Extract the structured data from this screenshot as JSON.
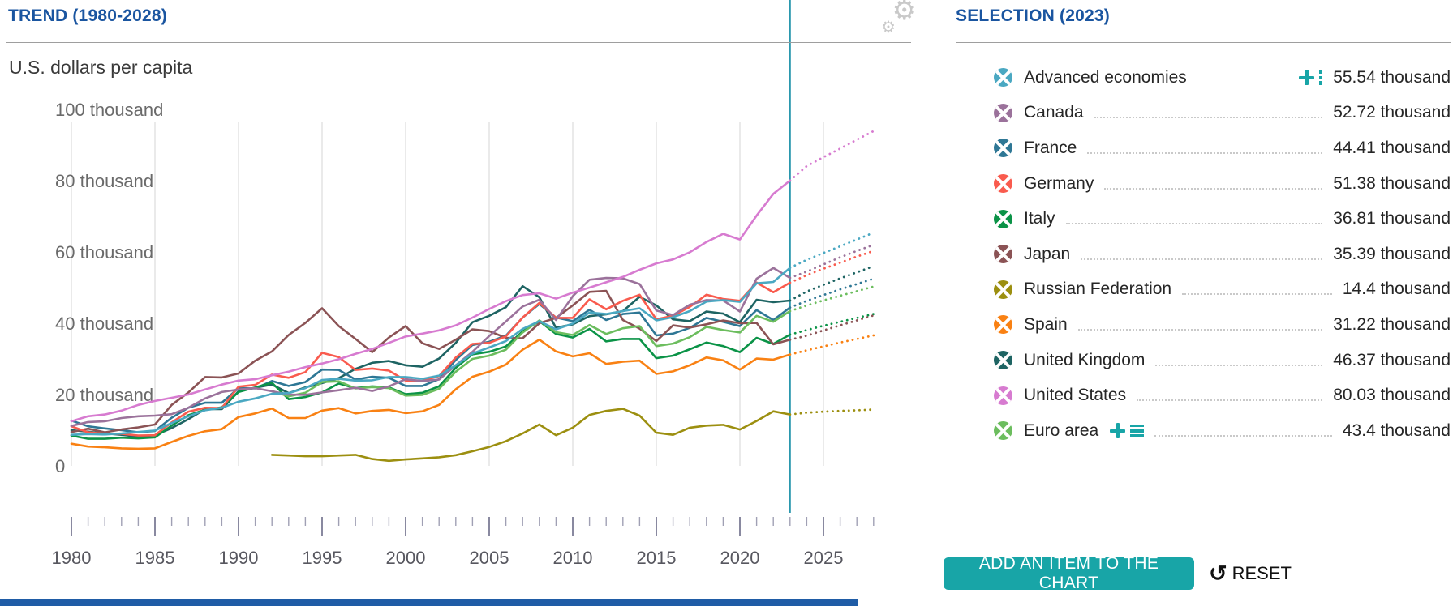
{
  "trend": {
    "title": "TREND (1980-2028)"
  },
  "selection": {
    "title": "SELECTION (2023)",
    "items": [
      {
        "label": "Advanced economies",
        "value": "55.54 thousand",
        "color": "#4aa8c2",
        "adder": "dots",
        "leader": false
      },
      {
        "label": "Canada",
        "value": "52.72 thousand",
        "color": "#9b729b",
        "adder": null,
        "leader": true
      },
      {
        "label": "France",
        "value": "44.41 thousand",
        "color": "#2e7795",
        "adder": null,
        "leader": true
      },
      {
        "label": "Germany",
        "value": "51.38 thousand",
        "color": "#f95b4e",
        "adder": null,
        "leader": true
      },
      {
        "label": "Italy",
        "value": "36.81 thousand",
        "color": "#0b9347",
        "adder": null,
        "leader": true
      },
      {
        "label": "Japan",
        "value": "35.39 thousand",
        "color": "#8b5355",
        "adder": null,
        "leader": true
      },
      {
        "label": "Russian Federation",
        "value": "14.4 thousand",
        "color": "#9c8f10",
        "adder": null,
        "leader": true
      },
      {
        "label": "Spain",
        "value": "31.22 thousand",
        "color": "#f98113",
        "adder": null,
        "leader": true
      },
      {
        "label": "United Kingdom",
        "value": "46.37 thousand",
        "color": "#1e6463",
        "adder": null,
        "leader": true
      },
      {
        "label": "United States",
        "value": "80.03 thousand",
        "color": "#d77bd0",
        "adder": null,
        "leader": true
      },
      {
        "label": "Euro area",
        "value": "43.4 thousand",
        "color": "#6cbd5e",
        "adder": "bars",
        "leader": true
      }
    ],
    "add_button": "ADD AN ITEM TO THE CHART",
    "reset_label": "RESET"
  },
  "chart_data": {
    "type": "line",
    "title": "TREND (1980-2028)",
    "unit_label": "U.S. dollars per capita",
    "value_unit": "thousand U.S. dollars",
    "x_range": [
      1980,
      2028
    ],
    "x_major_ticks": [
      1980,
      1985,
      1990,
      1995,
      2000,
      2005,
      2010,
      2015,
      2020,
      2025
    ],
    "y_ticks": [
      {
        "value": 100,
        "label": "100 thousand"
      },
      {
        "value": 80,
        "label": "80 thousand"
      },
      {
        "value": 60,
        "label": "60 thousand"
      },
      {
        "value": 40,
        "label": "40 thousand"
      },
      {
        "value": 20,
        "label": "20 thousand"
      },
      {
        "value": 0,
        "label": "0"
      }
    ],
    "ylim": [
      0,
      100
    ],
    "grid": "vertical-only",
    "legend_position": "right",
    "now_line_year": 2023,
    "projection_from": 2023,
    "now_line_color": "#2a98ae",
    "series": [
      {
        "name": "United Kingdom",
        "color": "#1e6463",
        "start_year": 1980,
        "values": [
          10.0,
          9.6,
          9.1,
          8.7,
          8.2,
          8.6,
          10.6,
          13.1,
          15.9,
          15.9,
          20.9,
          21.9,
          22.8,
          20.4,
          22.0,
          23.2,
          24.6,
          27.2,
          28.9,
          29.4,
          28.2,
          27.8,
          30.1,
          34.5,
          40.3,
          42.1,
          44.5,
          50.4,
          47.3,
          38.7,
          39.7,
          42.0,
          42.5,
          43.4,
          47.4,
          45.0,
          41.1,
          40.6,
          43.3,
          42.7,
          40.3,
          46.6,
          45.9,
          46.37,
          48.9,
          50.8,
          52.6,
          54.3,
          56.0
        ]
      },
      {
        "name": "France",
        "color": "#2e7795",
        "start_year": 1980,
        "values": [
          12.7,
          11.1,
          10.5,
          10.0,
          9.4,
          9.8,
          13.5,
          16.3,
          17.7,
          17.7,
          21.8,
          21.7,
          23.8,
          22.4,
          23.5,
          27.0,
          26.9,
          24.2,
          25.0,
          24.7,
          22.4,
          22.4,
          24.3,
          29.7,
          33.9,
          34.8,
          36.5,
          41.6,
          45.4,
          41.6,
          40.6,
          43.8,
          40.9,
          42.6,
          43.0,
          36.6,
          37.1,
          38.7,
          41.5,
          40.4,
          39.2,
          43.7,
          40.9,
          44.41,
          46.3,
          47.9,
          49.5,
          51.0,
          52.5
        ]
      },
      {
        "name": "Italy",
        "color": "#0b9347",
        "start_year": 1980,
        "values": [
          8.5,
          7.6,
          7.6,
          7.9,
          7.7,
          8.0,
          11.3,
          14.2,
          15.7,
          16.4,
          20.7,
          22.0,
          23.3,
          18.7,
          19.3,
          20.6,
          23.1,
          21.8,
          22.3,
          22.0,
          20.1,
          20.5,
          22.3,
          27.5,
          31.3,
          32.0,
          33.5,
          37.7,
          40.6,
          37.0,
          36.0,
          38.4,
          34.9,
          35.6,
          35.6,
          30.2,
          30.9,
          32.7,
          34.6,
          33.6,
          31.9,
          35.9,
          34.2,
          36.81,
          38.1,
          39.3,
          40.4,
          41.5,
          42.6
        ]
      },
      {
        "name": "Spain",
        "color": "#f98113",
        "start_year": 1980,
        "values": [
          6.2,
          5.4,
          5.2,
          4.9,
          4.8,
          4.9,
          6.7,
          8.4,
          9.7,
          10.3,
          13.7,
          14.7,
          16.1,
          13.4,
          13.4,
          15.5,
          16.2,
          14.7,
          15.4,
          15.7,
          14.8,
          15.3,
          17.1,
          21.5,
          25.0,
          26.4,
          28.4,
          32.6,
          35.4,
          32.1,
          30.7,
          31.6,
          28.6,
          29.2,
          29.5,
          25.8,
          26.5,
          28.2,
          30.4,
          29.6,
          27.0,
          30.1,
          29.8,
          31.22,
          32.4,
          33.5,
          34.6,
          35.6,
          36.6
        ]
      },
      {
        "name": "Japan",
        "color": "#8b5355",
        "start_year": 1980,
        "values": [
          9.5,
          10.4,
          9.4,
          10.2,
          10.8,
          11.6,
          17.1,
          20.6,
          24.9,
          24.8,
          25.9,
          29.5,
          32.1,
          36.7,
          40.1,
          44.2,
          39.2,
          35.6,
          31.9,
          36.0,
          39.2,
          34.4,
          32.8,
          35.4,
          38.3,
          37.8,
          35.9,
          35.8,
          40.0,
          41.5,
          45.0,
          48.8,
          49.1,
          40.9,
          38.5,
          35.0,
          39.4,
          38.8,
          39.7,
          40.8,
          40.0,
          40.1,
          34.1,
          35.39,
          36.5,
          38.0,
          39.4,
          40.8,
          42.2
        ]
      },
      {
        "name": "Russian Federation",
        "color": "#9c8f10",
        "start_year": 1992,
        "values": [
          3.1,
          2.9,
          2.7,
          2.7,
          2.9,
          3.1,
          1.9,
          1.4,
          1.8,
          2.1,
          2.4,
          3.0,
          4.1,
          5.3,
          6.9,
          9.1,
          11.6,
          8.6,
          10.7,
          14.3,
          15.4,
          16.0,
          14.1,
          9.3,
          8.7,
          10.7,
          11.3,
          11.5,
          10.2,
          12.6,
          15.3,
          14.4,
          14.9,
          15.2,
          15.4,
          15.6,
          15.8
        ]
      },
      {
        "name": "Euro area",
        "color": "#6cbd5e",
        "start_year": 1992,
        "values": [
          21.0,
          19.5,
          20.5,
          23.5,
          23.7,
          21.7,
          22.1,
          21.8,
          19.7,
          19.9,
          21.6,
          26.4,
          30.0,
          30.9,
          32.6,
          37.4,
          40.8,
          37.5,
          36.7,
          39.5,
          37.0,
          38.6,
          39.2,
          33.6,
          34.3,
          36.1,
          39.0,
          38.1,
          37.4,
          42.1,
          40.4,
          43.4,
          45.0,
          46.4,
          47.7,
          49.0,
          50.3
        ]
      },
      {
        "name": "Germany",
        "color": "#f95b4e",
        "start_year": 1980,
        "values": [
          11.1,
          9.4,
          9.0,
          9.0,
          8.5,
          8.6,
          12.2,
          15.2,
          16.3,
          16.2,
          22.2,
          22.7,
          25.6,
          24.7,
          26.3,
          31.7,
          30.5,
          26.9,
          27.3,
          26.7,
          23.9,
          23.8,
          25.2,
          30.4,
          34.2,
          34.5,
          36.3,
          41.6,
          45.7,
          41.5,
          41.5,
          46.7,
          43.9,
          46.3,
          48.0,
          41.1,
          42.1,
          44.6,
          48.0,
          46.8,
          46.3,
          51.4,
          48.7,
          51.38,
          53.5,
          55.3,
          57.0,
          58.7,
          60.3
        ]
      },
      {
        "name": "Canada",
        "color": "#9b729b",
        "start_year": 1980,
        "values": [
          11.2,
          12.3,
          12.5,
          13.4,
          13.9,
          14.1,
          14.5,
          16.3,
          18.9,
          20.7,
          21.4,
          21.8,
          20.9,
          20.0,
          19.9,
          20.6,
          21.2,
          21.9,
          21.0,
          22.3,
          24.3,
          23.8,
          24.2,
          28.2,
          32.0,
          36.4,
          40.5,
          44.7,
          46.6,
          40.9,
          47.6,
          52.2,
          52.7,
          52.6,
          51.0,
          43.6,
          42.3,
          45.2,
          46.5,
          46.4,
          43.3,
          52.5,
          55.5,
          52.72,
          54.5,
          56.5,
          58.5,
          60.3,
          62.0
        ]
      },
      {
        "name": "Advanced economies",
        "color": "#4aa8c2",
        "start_year": 1980,
        "values": [
          8.7,
          8.9,
          8.8,
          9.1,
          9.5,
          9.9,
          12.0,
          13.9,
          15.6,
          16.3,
          18.0,
          18.9,
          20.2,
          20.4,
          21.8,
          24.1,
          24.4,
          23.9,
          24.0,
          24.9,
          24.9,
          24.4,
          25.3,
          28.2,
          31.5,
          33.2,
          35.0,
          38.4,
          40.6,
          38.3,
          39.9,
          43.0,
          42.6,
          43.4,
          44.2,
          40.8,
          41.7,
          43.4,
          46.1,
          46.5,
          46.0,
          51.2,
          51.6,
          55.54,
          57.8,
          59.7,
          61.6,
          63.5,
          65.4
        ]
      },
      {
        "name": "United States",
        "color": "#d77bd0",
        "start_year": 1980,
        "values": [
          12.5,
          13.9,
          14.4,
          15.5,
          17.1,
          18.2,
          19.1,
          20.0,
          21.4,
          22.8,
          23.9,
          24.3,
          25.4,
          26.4,
          27.7,
          28.7,
          29.9,
          31.4,
          32.8,
          34.5,
          36.3,
          37.1,
          38.0,
          39.4,
          41.6,
          44.0,
          46.2,
          47.9,
          48.4,
          46.9,
          48.6,
          50.0,
          51.5,
          53.0,
          55.0,
          56.8,
          57.9,
          59.9,
          62.8,
          65.1,
          63.5,
          70.2,
          76.3,
          80.03,
          84.1,
          86.6,
          89.0,
          91.5,
          93.9
        ]
      }
    ]
  }
}
